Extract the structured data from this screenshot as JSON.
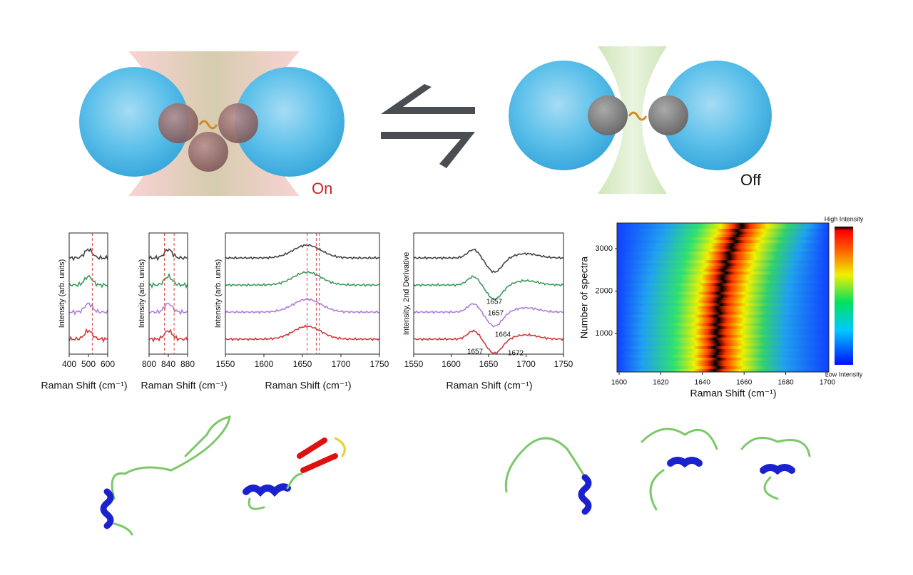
{
  "top": {
    "on_label": "On",
    "off_label": "Off"
  },
  "panels": [
    {
      "ylabel": "Intensity (arb. units)",
      "xlabel": "Raman Shift (cm⁻¹)",
      "xticks": [
        400,
        500,
        600
      ]
    },
    {
      "ylabel": "Intensity (arb. units)",
      "xlabel": "Raman Shift (cm⁻¹)",
      "xticks": [
        800,
        840,
        880
      ]
    },
    {
      "ylabel": "Intensity (arb. units)",
      "xlabel": "Raman Shift (cm⁻¹)",
      "xticks": [
        1550,
        1600,
        1650,
        1700,
        1750
      ]
    },
    {
      "ylabel": "Intensity, 2nd Derivative",
      "xlabel": "Raman Shift (cm⁻¹)",
      "xticks": [
        1550,
        1600,
        1650,
        1700,
        1750
      ],
      "annotations": [
        "1657",
        "1657",
        "1664",
        "1657",
        "1672"
      ]
    },
    {
      "ylabel": "Number of spectra",
      "xlabel": "Raman Shift (cm⁻¹)",
      "xticks": [
        1600,
        1620,
        1640,
        1660,
        1680,
        1700
      ],
      "yticks": [
        1000,
        2000,
        3000
      ],
      "colorbar": {
        "high": "High Intensity",
        "low": "Low Intensity"
      }
    }
  ]
}
